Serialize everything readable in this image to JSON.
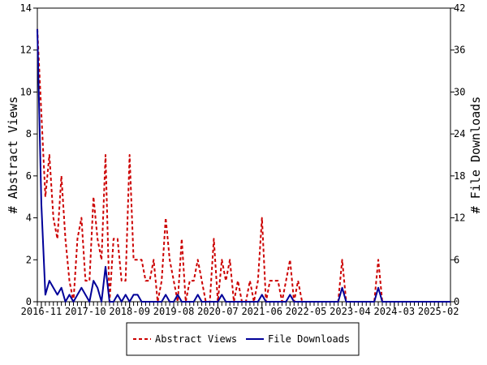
{
  "chart_data": {
    "type": "line",
    "ylabel": "# Abstract Views",
    "y2label": "# File Downloads",
    "ylim": [
      0,
      14
    ],
    "y2lim": [
      0,
      42
    ],
    "yticks": [
      0,
      2,
      4,
      6,
      8,
      10,
      12,
      14
    ],
    "y2ticks": [
      0,
      6,
      12,
      18,
      24,
      30,
      36,
      42
    ],
    "x_range": [
      "2016-10",
      "2025-05"
    ],
    "x_labels": [
      "2016-11",
      "2017-10",
      "2018-09",
      "2019-08",
      "2020-07",
      "2021-06",
      "2022-05",
      "2023-04",
      "2024-03",
      "2025-02"
    ],
    "legend_position": "bottom",
    "grid": false,
    "series": [
      {
        "name": "Abstract Views",
        "axis": "left",
        "color": "#cc0000",
        "style": "dashed",
        "points": [
          [
            "2016-10",
            13
          ],
          [
            "2016-11",
            9
          ],
          [
            "2016-12",
            5
          ],
          [
            "2017-01",
            7
          ],
          [
            "2017-02",
            4
          ],
          [
            "2017-03",
            3
          ],
          [
            "2017-04",
            6
          ],
          [
            "2017-05",
            3
          ],
          [
            "2017-06",
            1
          ],
          [
            "2017-07",
            0
          ],
          [
            "2017-08",
            3
          ],
          [
            "2017-09",
            4
          ],
          [
            "2017-10",
            1
          ],
          [
            "2017-11",
            1
          ],
          [
            "2017-12",
            5
          ],
          [
            "2018-01",
            3
          ],
          [
            "2018-02",
            2
          ],
          [
            "2018-03",
            7
          ],
          [
            "2018-04",
            0
          ],
          [
            "2018-05",
            3
          ],
          [
            "2018-06",
            3
          ],
          [
            "2018-07",
            1
          ],
          [
            "2018-08",
            1
          ],
          [
            "2018-09",
            7
          ],
          [
            "2018-10",
            2
          ],
          [
            "2018-11",
            2
          ],
          [
            "2018-12",
            2
          ],
          [
            "2019-01",
            1
          ],
          [
            "2019-02",
            1
          ],
          [
            "2019-03",
            2
          ],
          [
            "2019-04",
            0
          ],
          [
            "2019-05",
            1
          ],
          [
            "2019-06",
            4
          ],
          [
            "2019-07",
            2
          ],
          [
            "2019-08",
            1
          ],
          [
            "2019-09",
            0
          ],
          [
            "2019-10",
            3
          ],
          [
            "2019-11",
            0
          ],
          [
            "2019-12",
            1
          ],
          [
            "2020-01",
            1
          ],
          [
            "2020-02",
            2
          ],
          [
            "2020-03",
            1
          ],
          [
            "2020-04",
            0
          ],
          [
            "2020-05",
            0
          ],
          [
            "2020-06",
            3
          ],
          [
            "2020-07",
            0
          ],
          [
            "2020-08",
            2
          ],
          [
            "2020-09",
            1
          ],
          [
            "2020-10",
            2
          ],
          [
            "2020-11",
            0
          ],
          [
            "2020-12",
            1
          ],
          [
            "2021-01",
            0
          ],
          [
            "2021-02",
            0
          ],
          [
            "2021-03",
            1
          ],
          [
            "2021-04",
            0
          ],
          [
            "2021-05",
            1
          ],
          [
            "2021-06",
            4
          ],
          [
            "2021-07",
            0
          ],
          [
            "2021-08",
            1
          ],
          [
            "2021-09",
            1
          ],
          [
            "2021-10",
            1
          ],
          [
            "2021-11",
            0
          ],
          [
            "2021-12",
            1
          ],
          [
            "2022-01",
            2
          ],
          [
            "2022-02",
            0
          ],
          [
            "2022-03",
            1
          ],
          [
            "2022-04",
            0
          ],
          [
            "2022-05",
            0
          ],
          [
            "2022-06",
            0
          ],
          [
            "2022-07",
            0
          ],
          [
            "2022-08",
            0
          ],
          [
            "2022-09",
            0
          ],
          [
            "2022-10",
            0
          ],
          [
            "2022-11",
            0
          ],
          [
            "2022-12",
            0
          ],
          [
            "2023-01",
            0
          ],
          [
            "2023-02",
            2
          ],
          [
            "2023-03",
            0
          ],
          [
            "2023-04",
            0
          ],
          [
            "2023-05",
            0
          ],
          [
            "2023-06",
            0
          ],
          [
            "2023-07",
            0
          ],
          [
            "2023-08",
            0
          ],
          [
            "2023-09",
            0
          ],
          [
            "2023-10",
            0
          ],
          [
            "2023-11",
            2
          ],
          [
            "2023-12",
            0
          ],
          [
            "2024-01",
            0
          ],
          [
            "2024-02",
            0
          ],
          [
            "2024-03",
            0
          ],
          [
            "2024-04",
            0
          ],
          [
            "2024-05",
            0
          ],
          [
            "2024-06",
            0
          ],
          [
            "2024-07",
            0
          ],
          [
            "2024-08",
            0
          ],
          [
            "2024-09",
            0
          ],
          [
            "2024-10",
            0
          ],
          [
            "2024-11",
            0
          ],
          [
            "2024-12",
            0
          ],
          [
            "2025-01",
            0
          ],
          [
            "2025-02",
            0
          ],
          [
            "2025-03",
            0
          ],
          [
            "2025-04",
            0
          ],
          [
            "2025-05",
            0
          ]
        ]
      },
      {
        "name": "File Downloads",
        "axis": "right",
        "color": "#000099",
        "style": "solid",
        "points": [
          [
            "2016-10",
            39
          ],
          [
            "2016-11",
            14
          ],
          [
            "2016-12",
            1
          ],
          [
            "2017-01",
            3
          ],
          [
            "2017-02",
            2
          ],
          [
            "2017-03",
            1
          ],
          [
            "2017-04",
            2
          ],
          [
            "2017-05",
            0
          ],
          [
            "2017-06",
            1
          ],
          [
            "2017-07",
            0
          ],
          [
            "2017-08",
            1
          ],
          [
            "2017-09",
            2
          ],
          [
            "2017-10",
            1
          ],
          [
            "2017-11",
            0
          ],
          [
            "2017-12",
            3
          ],
          [
            "2018-01",
            2
          ],
          [
            "2018-02",
            0
          ],
          [
            "2018-03",
            5
          ],
          [
            "2018-04",
            0
          ],
          [
            "2018-05",
            0
          ],
          [
            "2018-06",
            1
          ],
          [
            "2018-07",
            0
          ],
          [
            "2018-08",
            1
          ],
          [
            "2018-09",
            0
          ],
          [
            "2018-10",
            1
          ],
          [
            "2018-11",
            1
          ],
          [
            "2018-12",
            0
          ],
          [
            "2019-01",
            0
          ],
          [
            "2019-02",
            0
          ],
          [
            "2019-03",
            0
          ],
          [
            "2019-04",
            0
          ],
          [
            "2019-05",
            0
          ],
          [
            "2019-06",
            1
          ],
          [
            "2019-07",
            0
          ],
          [
            "2019-08",
            0
          ],
          [
            "2019-09",
            1
          ],
          [
            "2019-10",
            0
          ],
          [
            "2019-11",
            0
          ],
          [
            "2019-12",
            0
          ],
          [
            "2020-01",
            0
          ],
          [
            "2020-02",
            1
          ],
          [
            "2020-03",
            0
          ],
          [
            "2020-04",
            0
          ],
          [
            "2020-05",
            0
          ],
          [
            "2020-06",
            0
          ],
          [
            "2020-07",
            0
          ],
          [
            "2020-08",
            1
          ],
          [
            "2020-09",
            0
          ],
          [
            "2020-10",
            0
          ],
          [
            "2020-11",
            0
          ],
          [
            "2020-12",
            0
          ],
          [
            "2021-01",
            0
          ],
          [
            "2021-02",
            0
          ],
          [
            "2021-03",
            0
          ],
          [
            "2021-04",
            0
          ],
          [
            "2021-05",
            0
          ],
          [
            "2021-06",
            1
          ],
          [
            "2021-07",
            0
          ],
          [
            "2021-08",
            0
          ],
          [
            "2021-09",
            0
          ],
          [
            "2021-10",
            0
          ],
          [
            "2021-11",
            0
          ],
          [
            "2021-12",
            0
          ],
          [
            "2022-01",
            1
          ],
          [
            "2022-02",
            0
          ],
          [
            "2022-03",
            0
          ],
          [
            "2022-04",
            0
          ],
          [
            "2022-05",
            0
          ],
          [
            "2022-06",
            0
          ],
          [
            "2022-07",
            0
          ],
          [
            "2022-08",
            0
          ],
          [
            "2022-09",
            0
          ],
          [
            "2022-10",
            0
          ],
          [
            "2022-11",
            0
          ],
          [
            "2022-12",
            0
          ],
          [
            "2023-01",
            0
          ],
          [
            "2023-02",
            2
          ],
          [
            "2023-03",
            0
          ],
          [
            "2023-04",
            0
          ],
          [
            "2023-05",
            0
          ],
          [
            "2023-06",
            0
          ],
          [
            "2023-07",
            0
          ],
          [
            "2023-08",
            0
          ],
          [
            "2023-09",
            0
          ],
          [
            "2023-10",
            0
          ],
          [
            "2023-11",
            2
          ],
          [
            "2023-12",
            0
          ],
          [
            "2024-01",
            0
          ],
          [
            "2024-02",
            0
          ],
          [
            "2024-03",
            0
          ],
          [
            "2024-04",
            0
          ],
          [
            "2024-05",
            0
          ],
          [
            "2024-06",
            0
          ],
          [
            "2024-07",
            0
          ],
          [
            "2024-08",
            0
          ],
          [
            "2024-09",
            0
          ],
          [
            "2024-10",
            0
          ],
          [
            "2024-11",
            0
          ],
          [
            "2024-12",
            0
          ],
          [
            "2025-01",
            0
          ],
          [
            "2025-02",
            0
          ],
          [
            "2025-03",
            0
          ],
          [
            "2025-04",
            0
          ],
          [
            "2025-05",
            0
          ]
        ]
      }
    ]
  }
}
